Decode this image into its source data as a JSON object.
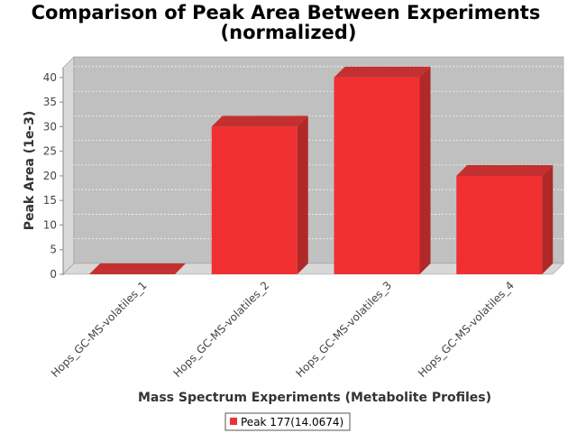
{
  "chart_data": {
    "type": "bar",
    "title": "Comparison of Peak Area Between Experiments",
    "subtitle": "(normalized)",
    "xlabel": "Mass Spectrum Experiments (Metabolite Profiles)",
    "ylabel": "Peak Area (1e-3)",
    "categories": [
      "Hops_GC-MS-volatiles_1",
      "Hops_GC-MS-volatiles_2",
      "Hops_GC-MS-volatiles_3",
      "Hops_GC-MS-volatiles_4"
    ],
    "series": [
      {
        "name": "Peak 177(14.0674)",
        "values": [
          0,
          30,
          40,
          20
        ],
        "color": "#f03030"
      }
    ],
    "ylim": [
      0,
      42
    ],
    "yticks": [
      0,
      5,
      10,
      15,
      20,
      25,
      30,
      35,
      40
    ],
    "grid": true,
    "legend": "bottom-center",
    "render": "3d-bar",
    "colors": {
      "plot_back": "#c0c0c0",
      "plot_side": "#d8d8d8",
      "bar_top": "#c43030",
      "bar_side": "#b02828"
    }
  }
}
